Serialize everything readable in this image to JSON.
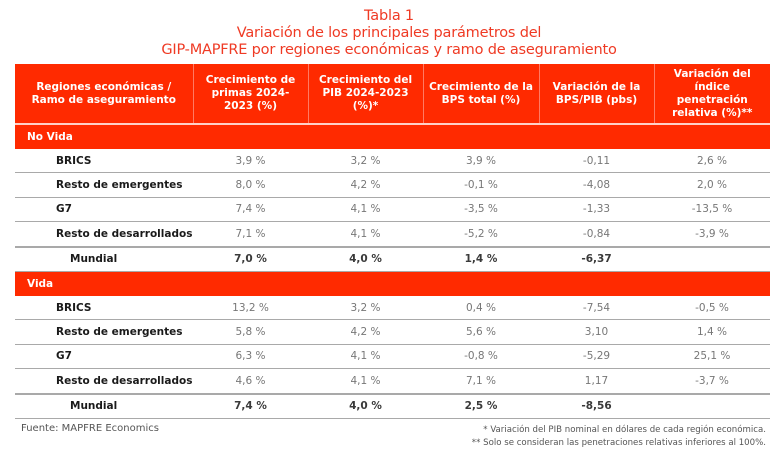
{
  "title": {
    "line1": "Tabla 1",
    "line2": "Variación de los principales parámetros del",
    "line3": "GIP-MAPFRE por regiones económicas y ramo de aseguramiento"
  },
  "colors": {
    "accent": "#ff2a00",
    "title": "#ef3a24"
  },
  "table": {
    "headers": [
      "Regiones económicas / Ramo de aseguramiento",
      "Crecimiento de primas 2024-2023 (%)",
      "Crecimiento del PIB 2024-2023 (%)*",
      "Crecimiento de la BPS total (%)",
      "Variación de la BPS/PIB (pbs)",
      "Variación del índice penetración relativa (%)**"
    ],
    "sections": [
      {
        "name": "No Vida",
        "rows": [
          {
            "region": "BRICS",
            "primas": "3,9 %",
            "pib": "3,2 %",
            "bps": "3,9 %",
            "bps_pib": "-0,11",
            "penetracion": "2,6 %"
          },
          {
            "region": "Resto de emergentes",
            "primas": "8,0 %",
            "pib": "4,2 %",
            "bps": "-0,1 %",
            "bps_pib": "-4,08",
            "penetracion": "2,0 %"
          },
          {
            "region": "G7",
            "primas": "7,4 %",
            "pib": "4,1 %",
            "bps": "-3,5 %",
            "bps_pib": "-1,33",
            "penetracion": "-13,5 %"
          },
          {
            "region": "Resto de desarrollados",
            "primas": "7,1 %",
            "pib": "4,1 %",
            "bps": "-5,2 %",
            "bps_pib": "-0,84",
            "penetracion": "-3,9 %"
          }
        ],
        "total": {
          "region": "Mundial",
          "primas": "7,0 %",
          "pib": "4,0 %",
          "bps": "1,4 %",
          "bps_pib": "-6,37",
          "penetracion": ""
        }
      },
      {
        "name": "Vida",
        "rows": [
          {
            "region": "BRICS",
            "primas": "13,2 %",
            "pib": "3,2 %",
            "bps": "0,4 %",
            "bps_pib": "-7,54",
            "penetracion": "-0,5 %"
          },
          {
            "region": "Resto de emergentes",
            "primas": "5,8 %",
            "pib": "4,2 %",
            "bps": "5,6 %",
            "bps_pib": "3,10",
            "penetracion": "1,4 %"
          },
          {
            "region": "G7",
            "primas": "6,3 %",
            "pib": "4,1 %",
            "bps": "-0,8 %",
            "bps_pib": "-5,29",
            "penetracion": "25,1 %"
          },
          {
            "region": "Resto de desarrollados",
            "primas": "4,6 %",
            "pib": "4,1 %",
            "bps": "7,1 %",
            "bps_pib": "1,17",
            "penetracion": "-3,7 %"
          }
        ],
        "total": {
          "region": "Mundial",
          "primas": "7,4 %",
          "pib": "4,0 %",
          "bps": "2,5 %",
          "bps_pib": "-8,56",
          "penetracion": ""
        }
      }
    ]
  },
  "footer": {
    "source": "Fuente: MAPFRE Economics",
    "note1": "* Variación del PIB nominal en dólares de cada región económica.",
    "note2": "** Solo se consideran las penetraciones relativas inferiores al 100%."
  }
}
